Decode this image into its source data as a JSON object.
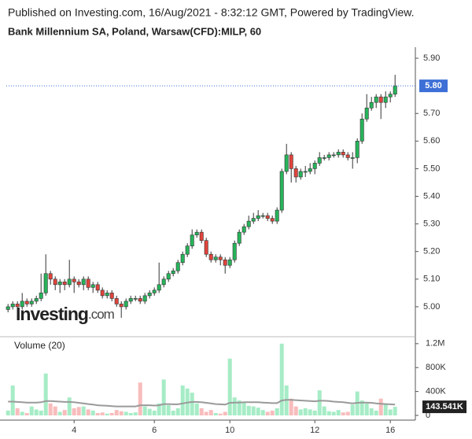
{
  "chart_data": {
    "type": "candlestick",
    "header": "Published on Investing.com, 16/Aug/2021 - 8:32:12 GMT, Powered by TradingView.",
    "title": "Bank Millennium SA, Poland, Warsaw(CFD):MILP, 60",
    "watermark": [
      "Investing",
      ".com"
    ],
    "xlim": [
      -1.7,
      85.8
    ],
    "xticks": [
      {
        "value": 14,
        "label": "4"
      },
      {
        "value": 31,
        "label": "6"
      },
      {
        "value": 47,
        "label": "10"
      },
      {
        "value": 65,
        "label": "12"
      },
      {
        "value": 81,
        "label": "16"
      }
    ],
    "ylim": [
      4.9,
      5.94
    ],
    "yticks": [
      {
        "value": 5.0,
        "label": "5.00"
      },
      {
        "value": 5.1,
        "label": "5.10"
      },
      {
        "value": 5.2,
        "label": "5.20"
      },
      {
        "value": 5.3,
        "label": "5.30"
      },
      {
        "value": 5.4,
        "label": "5.40"
      },
      {
        "value": 5.5,
        "label": "5.50"
      },
      {
        "value": 5.6,
        "label": "5.60"
      },
      {
        "value": 5.7,
        "label": "5.70"
      },
      {
        "value": 5.9,
        "label": "5.90"
      }
    ],
    "open": [
      4.99,
      5.0,
      5.01,
      5.0,
      5.02,
      5.01,
      5.02,
      5.03,
      5.05,
      5.12,
      5.1,
      5.08,
      5.09,
      5.08,
      5.1,
      5.09,
      5.08,
      5.1,
      5.07,
      5.08,
      5.06,
      5.04,
      5.05,
      5.03,
      5.01,
      5.0,
      5.02,
      5.03,
      5.03,
      5.02,
      5.04,
      5.05,
      5.06,
      5.08,
      5.1,
      5.12,
      5.13,
      5.16,
      5.19,
      5.22,
      5.26,
      5.27,
      5.24,
      5.19,
      5.17,
      5.18,
      5.17,
      5.15,
      5.17,
      5.23,
      5.27,
      5.29,
      5.31,
      5.32,
      5.33,
      5.33,
      5.32,
      5.31,
      5.35,
      5.49,
      5.55,
      5.5,
      5.47,
      5.49,
      5.49,
      5.5,
      5.52,
      5.54,
      5.54,
      5.55,
      5.55,
      5.56,
      5.55,
      5.54,
      5.54,
      5.6,
      5.68,
      5.72,
      5.74,
      5.76,
      5.74,
      5.76,
      5.77
    ],
    "high": [
      5.01,
      5.02,
      5.02,
      5.05,
      5.03,
      5.03,
      5.04,
      5.12,
      5.19,
      5.13,
      5.11,
      5.1,
      5.1,
      5.17,
      5.11,
      5.1,
      5.11,
      5.11,
      5.09,
      5.09,
      5.07,
      5.06,
      5.06,
      5.04,
      5.02,
      5.03,
      5.04,
      5.04,
      5.04,
      5.05,
      5.06,
      5.07,
      5.16,
      5.11,
      5.13,
      5.14,
      5.17,
      5.2,
      5.23,
      5.28,
      5.28,
      5.28,
      5.25,
      5.2,
      5.19,
      5.19,
      5.18,
      5.18,
      5.24,
      5.28,
      5.3,
      5.33,
      5.34,
      5.35,
      5.34,
      5.34,
      5.33,
      5.36,
      5.5,
      5.59,
      5.56,
      5.51,
      5.5,
      5.51,
      5.52,
      5.53,
      5.56,
      5.55,
      5.56,
      5.56,
      5.57,
      5.57,
      5.56,
      5.56,
      5.61,
      5.7,
      5.77,
      5.76,
      5.77,
      5.77,
      5.78,
      5.78,
      5.84
    ],
    "low": [
      4.98,
      4.99,
      4.99,
      4.99,
      5.0,
      5.0,
      5.01,
      5.02,
      5.04,
      5.08,
      5.06,
      5.05,
      5.06,
      5.07,
      5.05,
      5.07,
      5.06,
      5.06,
      5.05,
      5.05,
      5.03,
      5.03,
      5.02,
      5.0,
      4.96,
      4.99,
      5.01,
      5.02,
      5.01,
      5.01,
      5.03,
      5.04,
      5.05,
      5.07,
      5.09,
      5.11,
      5.12,
      5.15,
      5.18,
      5.21,
      5.25,
      5.23,
      5.18,
      5.16,
      5.16,
      5.15,
      5.12,
      5.14,
      5.16,
      5.22,
      5.26,
      5.28,
      5.3,
      5.31,
      5.32,
      5.31,
      5.3,
      5.3,
      5.34,
      5.48,
      5.45,
      5.45,
      5.46,
      5.47,
      5.48,
      5.48,
      5.51,
      5.53,
      5.53,
      5.54,
      5.54,
      5.54,
      5.53,
      5.5,
      5.52,
      5.59,
      5.67,
      5.71,
      5.72,
      5.68,
      5.72,
      5.74,
      5.76
    ],
    "close": [
      5.0,
      5.01,
      5.0,
      5.02,
      5.01,
      5.02,
      5.03,
      5.05,
      5.12,
      5.1,
      5.08,
      5.09,
      5.08,
      5.1,
      5.09,
      5.08,
      5.1,
      5.07,
      5.08,
      5.06,
      5.04,
      5.05,
      5.03,
      5.01,
      5.0,
      5.02,
      5.03,
      5.03,
      5.02,
      5.04,
      5.05,
      5.06,
      5.08,
      5.1,
      5.12,
      5.13,
      5.16,
      5.19,
      5.22,
      5.26,
      5.27,
      5.24,
      5.19,
      5.17,
      5.18,
      5.17,
      5.15,
      5.17,
      5.23,
      5.27,
      5.29,
      5.31,
      5.32,
      5.33,
      5.33,
      5.32,
      5.31,
      5.35,
      5.49,
      5.55,
      5.5,
      5.47,
      5.49,
      5.49,
      5.5,
      5.52,
      5.54,
      5.54,
      5.55,
      5.55,
      5.56,
      5.55,
      5.54,
      5.54,
      5.6,
      5.68,
      5.72,
      5.74,
      5.76,
      5.74,
      5.76,
      5.77,
      5.8
    ],
    "close_label": "5.80",
    "up_color": "#26b45a",
    "down_color": "#e0443c",
    "price_line_color": "#3d6fd6",
    "volume": {
      "name": "Volume (20)",
      "ylim": [
        0,
        1290000
      ],
      "yticks": [
        0,
        {
          "value": 400000,
          "label": "400K"
        },
        {
          "value": 800000,
          "label": "800K"
        },
        {
          "value": 1200000,
          "label": "1.2M"
        }
      ],
      "values": [
        80000,
        500000,
        120000,
        60000,
        40000,
        150000,
        100000,
        80000,
        700000,
        200000,
        150000,
        60000,
        90000,
        300000,
        120000,
        140000,
        150000,
        100000,
        80000,
        40000,
        50000,
        30000,
        40000,
        90000,
        70000,
        60000,
        40000,
        50000,
        550000,
        150000,
        110000,
        80000,
        200000,
        600000,
        170000,
        80000,
        120000,
        500000,
        450000,
        380000,
        200000,
        120000,
        60000,
        90000,
        40000,
        30000,
        60000,
        950000,
        300000,
        250000,
        220000,
        160000,
        150000,
        130000,
        90000,
        60000,
        80000,
        120000,
        1200000,
        500000,
        280000,
        150000,
        100000,
        120000,
        100000,
        80000,
        420000,
        150000,
        70000,
        60000,
        90000,
        50000,
        60000,
        180000,
        400000,
        250000,
        200000,
        120000,
        80000,
        280000,
        200000,
        100000,
        143541
      ],
      "last_label": "143.541K",
      "up_color": "#a6ecc6",
      "down_color": "#f8bcbc",
      "ma": {
        "color": "#9a9a9a",
        "values": [
          230000,
          230000,
          225000,
          220000,
          215000,
          215000,
          215000,
          220000,
          240000,
          240000,
          235000,
          230000,
          225000,
          225000,
          220000,
          210000,
          200000,
          190000,
          180000,
          170000,
          165000,
          160000,
          155000,
          150000,
          150000,
          150000,
          150000,
          150000,
          170000,
          170000,
          170000,
          165000,
          170000,
          190000,
          190000,
          185000,
          185000,
          200000,
          215000,
          225000,
          225000,
          220000,
          210000,
          200000,
          190000,
          185000,
          180000,
          210000,
          215000,
          215000,
          220000,
          220000,
          220000,
          220000,
          215000,
          210000,
          205000,
          205000,
          250000,
          260000,
          260000,
          255000,
          250000,
          245000,
          240000,
          235000,
          245000,
          245000,
          240000,
          230000,
          225000,
          220000,
          210000,
          200000,
          210000,
          215000,
          215000,
          210000,
          200000,
          195000,
          190000,
          185000,
          180000
        ]
      }
    }
  }
}
